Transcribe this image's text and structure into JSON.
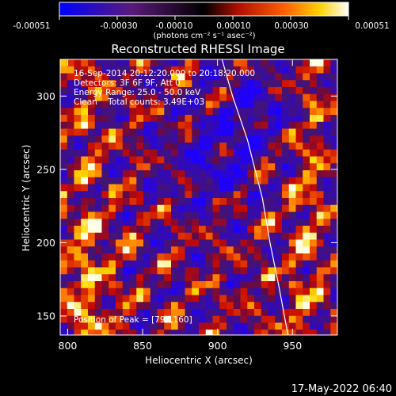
{
  "colorbar": {
    "ticks": [
      "-0.00051",
      "-0.00030",
      "-0.00010",
      "0.00010",
      "0.00030",
      "0.00051"
    ],
    "unit_label": "(photons cm⁻² s⁻¹ asec⁻²)",
    "range": [
      -0.00051,
      0.00051
    ]
  },
  "chart_data": {
    "type": "heatmap",
    "title": "Reconstructed RHESSI Image",
    "xlabel": "Heliocentric X (arcsec)",
    "ylabel": "Heliocentric Y (arcsec)",
    "xlim": [
      795,
      980
    ],
    "ylim": [
      137,
      325
    ],
    "xticks": [
      800,
      850,
      900,
      950
    ],
    "yticks": [
      150,
      200,
      250,
      300
    ],
    "annotations": [
      "16-Sep-2014 20:12:20.000 to 20:18:20.000",
      "Detectors: 3F 6F 9F, Att 0",
      "Energy Range: 25.0 - 50.0 keV",
      "Clean    Total counts: 3.49E+03"
    ],
    "peak_label": "Position of Peak = [796,160]",
    "peak_position": [
      796,
      160
    ],
    "limb_curve": [
      [
        903,
        325
      ],
      [
        910,
        300
      ],
      [
        920,
        270
      ],
      [
        930,
        230
      ],
      [
        935,
        200
      ],
      [
        941,
        170
      ],
      [
        947,
        137
      ]
    ]
  },
  "footer": {
    "timestamp": "17-May-2022 06:40"
  }
}
